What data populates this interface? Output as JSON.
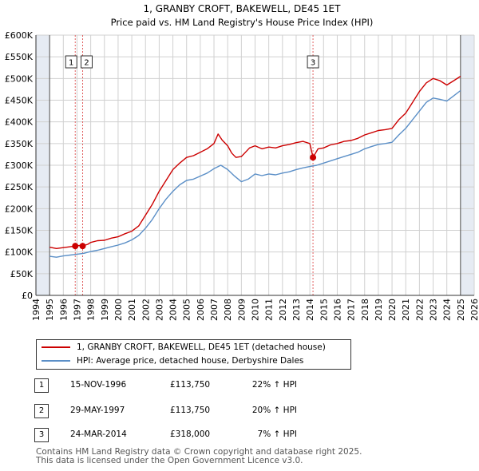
{
  "chart_data": {
    "type": "line",
    "title": "1, GRANBY CROFT, BAKEWELL, DE45 1ET",
    "subtitle": "Price paid vs. HM Land Registry's House Price Index (HPI)",
    "xlim": [
      1994,
      2026
    ],
    "ylim": [
      0,
      600000
    ],
    "x_ticks": [
      1994,
      1995,
      1996,
      1997,
      1998,
      1999,
      2000,
      2001,
      2002,
      2003,
      2004,
      2005,
      2006,
      2007,
      2008,
      2009,
      2010,
      2011,
      2012,
      2013,
      2014,
      2015,
      2016,
      2017,
      2018,
      2019,
      2020,
      2021,
      2022,
      2023,
      2024,
      2025,
      2026
    ],
    "x_tick_labels": [
      "1994",
      "1995",
      "1996",
      "1997",
      "1998",
      "1999",
      "2000",
      "2001",
      "2002",
      "2003",
      "2004",
      "2005",
      "2006",
      "2007",
      "2008",
      "2009",
      "2010",
      "2011",
      "2012",
      "2013",
      "2014",
      "2015",
      "2016",
      "2017",
      "2018",
      "2019",
      "2020",
      "2021",
      "2022",
      "2023",
      "2024",
      "2025",
      "2026"
    ],
    "y_ticks": [
      0,
      50000,
      100000,
      150000,
      200000,
      250000,
      300000,
      350000,
      400000,
      450000,
      500000,
      550000,
      600000
    ],
    "y_tick_labels": [
      "£0",
      "£50K",
      "£100K",
      "£150K",
      "£200K",
      "£250K",
      "£300K",
      "£350K",
      "£400K",
      "£450K",
      "£500K",
      "£550K",
      "£600K"
    ],
    "data_range": [
      1995.0,
      2025.0
    ],
    "series": [
      {
        "name": "1, GRANBY CROFT, BAKEWELL, DE45 1ET (detached house)",
        "color": "#cc0000",
        "x": [
          1995.0,
          1995.5,
          1996.0,
          1996.5,
          1996.87,
          1997.2,
          1997.41,
          1997.8,
          1998.0,
          1998.5,
          1999.0,
          1999.5,
          2000.0,
          2000.5,
          2001.0,
          2001.5,
          2002.0,
          2002.5,
          2003.0,
          2003.5,
          2004.0,
          2004.5,
          2005.0,
          2005.5,
          2006.0,
          2006.5,
          2007.0,
          2007.3,
          2007.6,
          2008.0,
          2008.3,
          2008.6,
          2009.0,
          2009.3,
          2009.6,
          2010.0,
          2010.5,
          2011.0,
          2011.5,
          2012.0,
          2012.5,
          2013.0,
          2013.5,
          2014.0,
          2014.23,
          2014.6,
          2015.0,
          2015.5,
          2016.0,
          2016.5,
          2017.0,
          2017.5,
          2018.0,
          2018.5,
          2019.0,
          2019.5,
          2020.0,
          2020.5,
          2021.0,
          2021.5,
          2022.0,
          2022.5,
          2023.0,
          2023.5,
          2024.0,
          2024.5,
          2025.0
        ],
        "values": [
          111000,
          108000,
          110000,
          112000,
          113750,
          115000,
          113750,
          118000,
          122000,
          126000,
          127000,
          132000,
          135000,
          142000,
          148000,
          160000,
          185000,
          210000,
          240000,
          265000,
          290000,
          305000,
          318000,
          322000,
          330000,
          338000,
          350000,
          372000,
          358000,
          345000,
          328000,
          318000,
          320000,
          330000,
          340000,
          345000,
          338000,
          342000,
          340000,
          345000,
          348000,
          352000,
          355000,
          350000,
          318000,
          338000,
          340000,
          347000,
          350000,
          355000,
          357000,
          362000,
          370000,
          375000,
          380000,
          382000,
          385000,
          405000,
          420000,
          445000,
          470000,
          490000,
          500000,
          495000,
          485000,
          495000,
          505000
        ]
      },
      {
        "name": "HPI: Average price, detached house, Derbyshire Dales",
        "color": "#5b8fc7",
        "x": [
          1995.0,
          1995.5,
          1996.0,
          1996.5,
          1997.0,
          1997.5,
          1998.0,
          1998.5,
          1999.0,
          1999.5,
          2000.0,
          2000.5,
          2001.0,
          2001.5,
          2002.0,
          2002.5,
          2003.0,
          2003.5,
          2004.0,
          2004.5,
          2005.0,
          2005.5,
          2006.0,
          2006.5,
          2007.0,
          2007.5,
          2008.0,
          2008.5,
          2009.0,
          2009.5,
          2010.0,
          2010.5,
          2011.0,
          2011.5,
          2012.0,
          2012.5,
          2013.0,
          2013.5,
          2014.0,
          2014.5,
          2015.0,
          2015.5,
          2016.0,
          2016.5,
          2017.0,
          2017.5,
          2018.0,
          2018.5,
          2019.0,
          2019.5,
          2020.0,
          2020.5,
          2021.0,
          2021.5,
          2022.0,
          2022.5,
          2023.0,
          2023.5,
          2024.0,
          2024.5,
          2025.0
        ],
        "values": [
          90000,
          88000,
          91000,
          93000,
          95000,
          97000,
          101000,
          104000,
          108000,
          112000,
          116000,
          121000,
          128000,
          138000,
          155000,
          175000,
          200000,
          222000,
          240000,
          255000,
          265000,
          268000,
          275000,
          282000,
          292000,
          300000,
          290000,
          275000,
          262000,
          268000,
          280000,
          276000,
          280000,
          278000,
          282000,
          285000,
          290000,
          294000,
          297000,
          300000,
          305000,
          310000,
          315000,
          320000,
          325000,
          330000,
          338000,
          343000,
          348000,
          350000,
          353000,
          370000,
          385000,
          405000,
          425000,
          445000,
          455000,
          452000,
          448000,
          460000,
          472000
        ]
      }
    ],
    "transactions": [
      {
        "marker": "1",
        "x": 1996.87,
        "value": 113750,
        "date": "15-NOV-1996",
        "price": "£113,750",
        "hpi_change": "22% ↑ HPI"
      },
      {
        "marker": "2",
        "x": 1997.41,
        "value": 113750,
        "date": "29-MAY-1997",
        "price": "£113,750",
        "hpi_change": "20% ↑ HPI"
      },
      {
        "marker": "3",
        "x": 2014.23,
        "value": 318000,
        "date": "24-MAR-2014",
        "price": "£318,000",
        "hpi_change": "7% ↑ HPI"
      }
    ],
    "colors": {
      "property": "#cc0000",
      "hpi": "#5b8fc7",
      "shade": "#e6ebf3",
      "grid": "#d0d0d0",
      "vline": "#e06060"
    }
  },
  "footer": {
    "line1": "Contains HM Land Registry data © Crown copyright and database right 2025.",
    "line2": "This data is licensed under the Open Government Licence v3.0."
  }
}
